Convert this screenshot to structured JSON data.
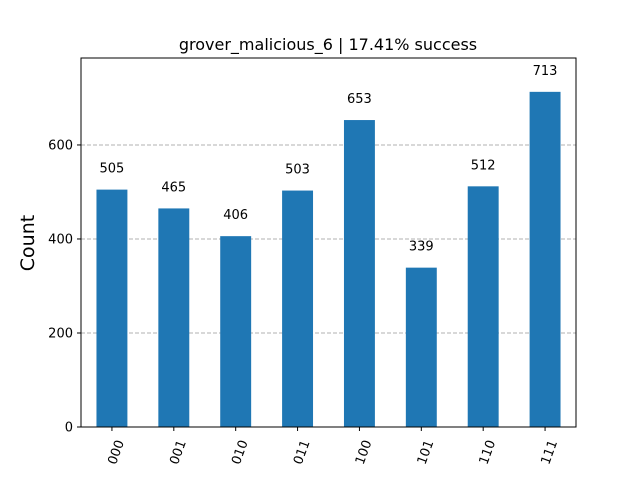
{
  "chart_data": {
    "type": "bar",
    "title": "grover_malicious_6 | 17.41% success",
    "xlabel": "",
    "ylabel": "Count",
    "categories": [
      "000",
      "001",
      "010",
      "011",
      "100",
      "101",
      "110",
      "111"
    ],
    "values": [
      505,
      465,
      406,
      503,
      653,
      339,
      512,
      713
    ],
    "data_labels": [
      "505",
      "465",
      "406",
      "503",
      "653",
      "339",
      "512",
      "713"
    ],
    "yticks": [
      0,
      200,
      400,
      600
    ],
    "ytick_labels": [
      "0",
      "200",
      "400",
      "600"
    ],
    "ylim": [
      0,
      785
    ],
    "grid": "y-dashed",
    "bar_color": "#1f77b4",
    "grid_color": "#b0b0b0"
  }
}
